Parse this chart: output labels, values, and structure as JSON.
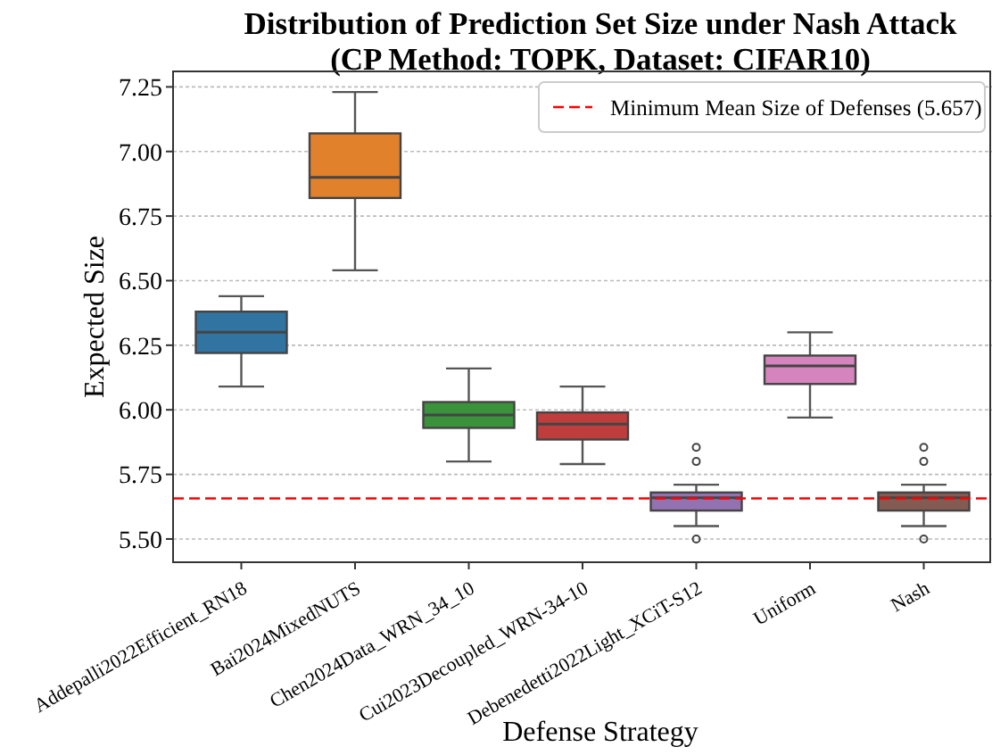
{
  "chart_data": {
    "type": "box",
    "title": "Distribution of Prediction Set Size under Nash Attack\n(CP Method: TOPK, Dataset: CIFAR10)",
    "xlabel": "Defense Strategy",
    "ylabel": "Expected Size",
    "categories": [
      "Addepalli2022Efficient_RN18",
      "Bai2024MixedNUTS",
      "Chen2024Data_WRN_34_10",
      "Cui2023Decoupled_WRN-34-10",
      "Debenedetti2022Light_XCiT-S12",
      "Uniform",
      "Nash"
    ],
    "colors": [
      "#3274a1",
      "#e1812c",
      "#3a923a",
      "#c03d3e",
      "#9372b2",
      "#d684bd",
      "#845b53"
    ],
    "boxes": [
      {
        "low": 6.09,
        "q1": 6.22,
        "median": 6.3,
        "q3": 6.38,
        "high": 6.44
      },
      {
        "low": 6.54,
        "q1": 6.82,
        "median": 6.9,
        "q3": 7.07,
        "high": 7.23
      },
      {
        "low": 5.8,
        "q1": 5.93,
        "median": 5.98,
        "q3": 6.03,
        "high": 6.16
      },
      {
        "low": 5.79,
        "q1": 5.885,
        "median": 5.945,
        "q3": 5.99,
        "high": 6.09
      },
      {
        "low": 5.55,
        "q1": 5.61,
        "median": 5.66,
        "q3": 5.68,
        "high": 5.71,
        "outliers": [
          5.855,
          5.8,
          5.5
        ]
      },
      {
        "low": 5.97,
        "q1": 6.1,
        "median": 6.17,
        "q3": 6.21,
        "high": 6.3
      },
      {
        "low": 5.55,
        "q1": 5.61,
        "median": 5.66,
        "q3": 5.68,
        "high": 5.71,
        "outliers": [
          5.855,
          5.8,
          5.5
        ]
      }
    ],
    "ylim": [
      5.41,
      7.31
    ],
    "yticks": [
      {
        "value": 5.5,
        "label": "5.50"
      },
      5.75,
      {
        "value": 6,
        "label": "6.00"
      },
      6.25,
      {
        "value": 6.5,
        "label": "6.50"
      },
      6.75,
      {
        "value": 7,
        "label": "7.00"
      },
      7.25
    ],
    "grid": "y",
    "legend": "top right",
    "ref_lines": [
      {
        "axis": "y",
        "value": 5.657,
        "label": "Minimum Mean Size of Defenses (5.657)",
        "color": "#ff0000",
        "line_style": "dashed"
      }
    ]
  }
}
